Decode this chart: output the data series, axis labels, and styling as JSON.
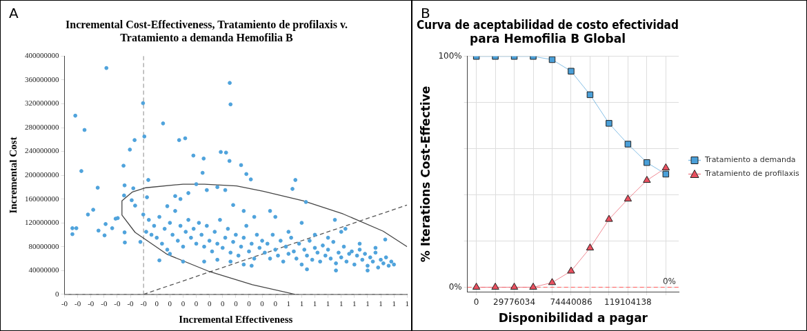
{
  "chart_data": [
    {
      "type": "scatter",
      "title": "Incremental Cost-Effectiveness, Tratamiento de profilaxis v. Tratamiento a demanda Hemofilia B",
      "xlabel": "Incremental Effectiveness",
      "ylabel": "Incremental Cost",
      "annotations": [
        "A"
      ],
      "grid": false,
      "legend": false,
      "xlim": [
        -0.3,
        1.0
      ],
      "ylim": [
        0,
        400000000
      ],
      "xticks": [
        {
          "value": -0.3,
          "label": "-0"
        },
        {
          "value": -0.25,
          "label": "-0"
        },
        {
          "value": -0.2,
          "label": "-0"
        },
        {
          "value": -0.15,
          "label": "-0"
        },
        {
          "value": -0.1,
          "label": "-0"
        },
        {
          "value": -0.05,
          "label": "-0"
        },
        {
          "value": 0,
          "label": "-0"
        },
        {
          "value": 0.05,
          "label": "0"
        },
        {
          "value": 0.1,
          "label": "0"
        },
        {
          "value": 0.15,
          "label": "0"
        },
        {
          "value": 0.2,
          "label": "0"
        },
        {
          "value": 0.25,
          "label": "0"
        },
        {
          "value": 0.3,
          "label": "0"
        },
        {
          "value": 0.35,
          "label": "0"
        },
        {
          "value": 0.4,
          "label": "0"
        },
        {
          "value": 0.45,
          "label": "0"
        },
        {
          "value": 0.5,
          "label": "0"
        },
        {
          "value": 0.55,
          "label": "1"
        },
        {
          "value": 0.6,
          "label": "1"
        },
        {
          "value": 0.65,
          "label": "1"
        },
        {
          "value": 0.7,
          "label": "1"
        },
        {
          "value": 0.75,
          "label": "1"
        },
        {
          "value": 0.8,
          "label": "1"
        },
        {
          "value": 0.85,
          "label": "1"
        },
        {
          "value": 0.9,
          "label": "1"
        },
        {
          "value": 0.95,
          "label": "1"
        },
        {
          "value": 1.0,
          "label": "1"
        }
      ],
      "yticks": [
        0,
        40000000,
        80000000,
        120000000,
        160000000,
        200000000,
        240000000,
        280000000,
        320000000,
        360000000,
        400000000
      ],
      "ref_lines": [
        {
          "axis": "x",
          "value": 0,
          "color": "#888888",
          "line_style": "dashed"
        },
        {
          "axis": "y",
          "value": 0,
          "color": "#bbbbbb",
          "line_style": "dashed"
        }
      ],
      "series": [
        {
          "type": "scatter",
          "color": "#4fa3dc",
          "marker": "circle",
          "x": [
            -0.141,
            -0.259,
            -0.224,
            -0.236,
            -0.27,
            -0.27,
            -0.255,
            -0.211,
            -0.191,
            -0.174,
            -0.171,
            -0.148,
            -0.144,
            -0.119,
            -0.106,
            -0.098,
            -0.076,
            -0.072,
            -0.074,
            -0.072,
            -0.071,
            -0.052,
            -0.034,
            -0.045,
            -0.039,
            -0.032,
            -0.002,
            0.003,
            0.018,
            0.013,
            -0.001,
            -0.012,
            0.074,
            0.135,
            0.158,
            0.189,
            0.228,
            0.224,
            0.293,
            0.313,
            0.326,
            0.327,
            0.33,
            0.37,
            0.39,
            0.407,
            0.576,
            0.565,
            0.616,
            0.726,
            0.917,
            0.766,
            0.01,
            0.02,
            0.03,
            0.04,
            0.05,
            0.06,
            0.07,
            0.08,
            0.09,
            0.1,
            0.11,
            0.12,
            0.13,
            0.14,
            0.15,
            0.16,
            0.17,
            0.18,
            0.19,
            0.2,
            0.06,
            0.1,
            0.15,
            0.12,
            0.17,
            0.2,
            0.09,
            0.14,
            0.21,
            0.22,
            0.23,
            0.24,
            0.25,
            0.26,
            0.27,
            0.28,
            0.29,
            0.3,
            0.31,
            0.32,
            0.33,
            0.34,
            0.35,
            0.36,
            0.37,
            0.38,
            0.39,
            0.4,
            0.41,
            0.42,
            0.43,
            0.44,
            0.45,
            0.24,
            0.28,
            0.31,
            0.34,
            0.38,
            0.42,
            0.23,
            0.28,
            0.33,
            0.38,
            0.41,
            0.46,
            0.47,
            0.48,
            0.49,
            0.5,
            0.51,
            0.52,
            0.53,
            0.54,
            0.55,
            0.56,
            0.57,
            0.58,
            0.59,
            0.6,
            0.61,
            0.62,
            0.63,
            0.64,
            0.65,
            0.66,
            0.67,
            0.68,
            0.69,
            0.7,
            0.71,
            0.72,
            0.73,
            0.74,
            0.75,
            0.76,
            0.77,
            0.78,
            0.79,
            0.8,
            0.81,
            0.82,
            0.83,
            0.84,
            0.85,
            0.86,
            0.87,
            0.88,
            0.89,
            0.9,
            0.91,
            0.92,
            0.93,
            0.94,
            0.95,
            0.5,
            0.55,
            0.48,
            0.6,
            0.65,
            0.7,
            0.75,
            0.82,
            0.88,
            0.73,
            0.62,
            0.85
          ],
          "values": [
            380000000,
            300000000,
            276000000,
            207000000,
            111000000,
            101000000,
            111000000,
            134000000,
            142000000,
            179000000,
            107000000,
            99000000,
            118000000,
            111000000,
            127000000,
            128000000,
            216000000,
            183000000,
            166000000,
            104000000,
            87000000,
            243000000,
            259000000,
            158000000,
            178000000,
            149000000,
            321000000,
            265000000,
            192000000,
            163000000,
            134000000,
            88000000,
            287000000,
            259000000,
            262000000,
            233000000,
            228000000,
            204000000,
            239000000,
            238000000,
            224000000,
            355000000,
            319000000,
            217000000,
            202000000,
            193000000,
            192000000,
            177000000,
            155000000,
            125000000,
            92000000,
            110000000,
            105000000,
            125000000,
            100000000,
            115000000,
            95000000,
            130000000,
            85000000,
            110000000,
            75000000,
            120000000,
            100000000,
            140000000,
            90000000,
            115000000,
            80000000,
            105000000,
            125000000,
            95000000,
            110000000,
            85000000,
            57000000,
            68000000,
            55000000,
            165000000,
            170000000,
            185000000,
            148000000,
            160000000,
            120000000,
            100000000,
            80000000,
            115000000,
            90000000,
            72000000,
            105000000,
            85000000,
            125000000,
            78000000,
            95000000,
            110000000,
            70000000,
            88000000,
            100000000,
            65000000,
            80000000,
            95000000,
            115000000,
            72000000,
            85000000,
            60000000,
            100000000,
            78000000,
            90000000,
            175000000,
            180000000,
            175000000,
            150000000,
            140000000,
            130000000,
            55000000,
            58000000,
            55000000,
            50000000,
            48000000,
            70000000,
            85000000,
            60000000,
            100000000,
            75000000,
            65000000,
            90000000,
            55000000,
            80000000,
            68000000,
            95000000,
            72000000,
            60000000,
            85000000,
            50000000,
            75000000,
            65000000,
            90000000,
            58000000,
            78000000,
            70000000,
            55000000,
            82000000,
            65000000,
            75000000,
            60000000,
            88000000,
            52000000,
            70000000,
            62000000,
            80000000,
            55000000,
            68000000,
            72000000,
            50000000,
            65000000,
            75000000,
            58000000,
            68000000,
            48000000,
            62000000,
            55000000,
            70000000,
            45000000,
            58000000,
            52000000,
            62000000,
            48000000,
            55000000,
            50000000,
            130000000,
            105000000,
            140000000,
            120000000,
            100000000,
            95000000,
            105000000,
            85000000,
            78000000,
            40000000,
            42000000,
            40000000
          ]
        },
        {
          "type": "line",
          "color": "#444444",
          "marker": "none",
          "line_style": "solid",
          "x": [
            0.575,
            0.413,
            0.251,
            0.09,
            -0.032,
            -0.082,
            -0.082,
            -0.042,
            0.009,
            0.15,
            0.231,
            0.353,
            0.454,
            0.605,
            0.757,
            0.909,
            1.0
          ],
          "values": [
            0,
            16000000,
            38000000,
            67000000,
            104000000,
            133000000,
            157000000,
            172000000,
            179000000,
            185000000,
            185000000,
            182000000,
            173000000,
            157000000,
            135000000,
            106000000,
            80000000
          ]
        },
        {
          "type": "line",
          "color": "#555555",
          "marker": "none",
          "line_style": "dashed",
          "x": [
            0,
            1.0
          ],
          "values": [
            0,
            150000000
          ]
        }
      ]
    },
    {
      "type": "line",
      "title": "Curva de aceptabilidad de costo efectividad para Hemofilia B Global",
      "xlabel": "Disponibilidad a pagar",
      "ylabel": "% Iterations Cost-Effective",
      "annotations": [
        "B"
      ],
      "grid": true,
      "legend": "right",
      "line_style": "solid",
      "x": [
        0,
        14888017,
        29776034,
        44664051,
        59552068,
        74440085,
        89328102,
        104216119,
        119104136,
        133992153,
        148880170
      ],
      "xlim": [
        -7000000,
        159000000
      ],
      "ylim": [
        -2,
        100
      ],
      "xticks": [
        {
          "value": 0,
          "label": "0"
        },
        {
          "value": 14888017,
          "label": null
        },
        {
          "value": 29776034,
          "label": "29776034"
        },
        {
          "value": 44664051,
          "label": null
        },
        {
          "value": 59552068,
          "label": null
        },
        {
          "value": 74440086,
          "label": "74440086"
        },
        {
          "value": 89328102,
          "label": null
        },
        {
          "value": 104216119,
          "label": null
        },
        {
          "value": 119104138,
          "label": "119104138"
        },
        {
          "value": 133992153,
          "label": null
        },
        {
          "value": 148880170,
          "label": null
        }
      ],
      "yticks": [
        {
          "value": 0,
          "label": "0%"
        },
        {
          "value": 20,
          "label": null
        },
        {
          "value": 40,
          "label": null
        },
        {
          "value": 60,
          "label": null
        },
        {
          "value": 80,
          "label": null
        },
        {
          "value": 100,
          "label": "100%"
        }
      ],
      "ref_lines": [
        {
          "axis": "y",
          "value": 0,
          "label": "0%",
          "color": "#ff5a5a",
          "line_style": "dashed"
        }
      ],
      "series": [
        {
          "name": "Tratamiento a demanda",
          "color": "#4a9fd8",
          "marker": "square",
          "values": [
            100,
            100,
            100,
            100,
            98.6,
            93.6,
            83.4,
            71,
            62,
            54,
            49
          ]
        },
        {
          "name": "Tratamiento de profilaxis",
          "color": "#e8505f",
          "marker": "triangle",
          "values": [
            0,
            0,
            0,
            0,
            2,
            7,
            17,
            29.4,
            38.2,
            46.3,
            51.7
          ]
        }
      ]
    }
  ]
}
